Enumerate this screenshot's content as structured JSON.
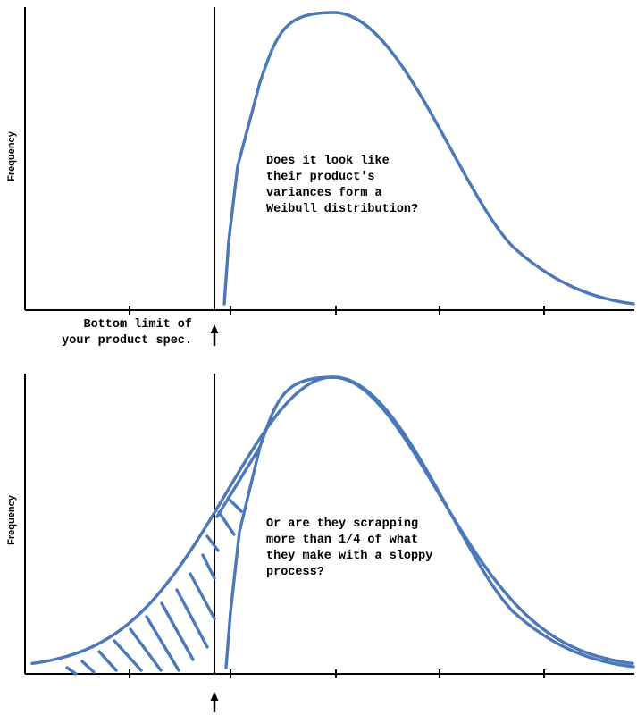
{
  "chart_data": [
    {
      "type": "line",
      "ylabel": "Frequency",
      "annotation_lines": [
        "Does it look like",
        "their product's",
        "variances form a",
        "Weibull distribution?"
      ],
      "spec_label_lines": [
        "Bottom limit of",
        "your product spec."
      ],
      "series": [
        {
          "shape": "weibull",
          "color": "#4a78b8"
        }
      ]
    },
    {
      "type": "line",
      "ylabel": "Frequency",
      "annotation_lines": [
        "Or are they scrapping",
        "more than 1/4 of what",
        "they make with a sloppy",
        "process?"
      ],
      "series": [
        {
          "shape": "weibull",
          "color": "#4a78b8"
        },
        {
          "shape": "normal",
          "color": "#4a78b8"
        }
      ],
      "shaded": "area left of spec limit"
    }
  ],
  "colors": {
    "curve": "#4a78b8",
    "axis": "#000000"
  },
  "icons": [
    "up-arrow-icon",
    "up-arrow-icon"
  ]
}
